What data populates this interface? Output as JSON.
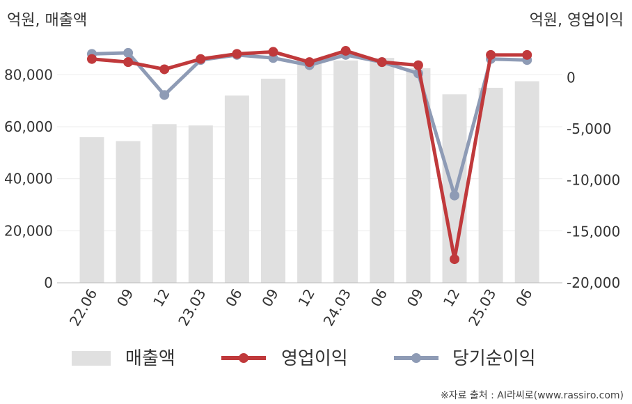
{
  "chart_data": {
    "type": "bar+line",
    "left_unit": "억원, 매출액",
    "right_unit": "억원, 영업이익",
    "categories": [
      "22.06",
      "09",
      "12",
      "23.03",
      "06",
      "09",
      "12",
      "24.03",
      "06",
      "09",
      "12",
      "25.03",
      "06"
    ],
    "left_axis": {
      "min": 0,
      "max": 90000,
      "ticks": [
        0,
        20000,
        40000,
        60000,
        80000
      ],
      "tick_labels": [
        "0",
        "20,000",
        "40,000",
        "60,000",
        "80,000"
      ]
    },
    "right_axis": {
      "min": -20000,
      "max": 2800,
      "ticks": [
        -20000,
        -15000,
        -10000,
        -5000,
        0
      ],
      "tick_labels": [
        "-20,000",
        "-15,000",
        "-10,000",
        "-5,000",
        "0"
      ]
    },
    "series": [
      {
        "name": "매출액",
        "kind": "bar",
        "axis": "left",
        "color": "#e0e0e0",
        "values": [
          56000,
          54500,
          61000,
          60500,
          72000,
          78500,
          86000,
          85500,
          86500,
          82500,
          72500,
          75000,
          77500
        ]
      },
      {
        "name": "영업이익",
        "kind": "line",
        "axis": "right",
        "color": "#c0393b",
        "values": [
          1800,
          1500,
          800,
          1800,
          2300,
          2500,
          1500,
          2600,
          1500,
          1200,
          -17700,
          2200,
          2200
        ]
      },
      {
        "name": "당기순이익",
        "kind": "line",
        "axis": "right",
        "color": "#8e9bb5",
        "values": [
          2300,
          2400,
          -1700,
          1700,
          2200,
          1900,
          1200,
          2200,
          1500,
          400,
          -11500,
          1800,
          1700
        ]
      }
    ],
    "grid": true,
    "legend_position": "bottom"
  },
  "source_note": "※자료 출처 : AI라씨로(www.rassiro.com)"
}
